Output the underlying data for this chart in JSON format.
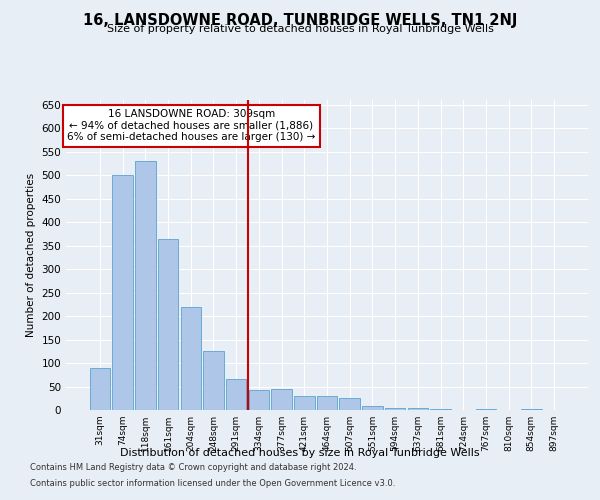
{
  "title": "16, LANSDOWNE ROAD, TUNBRIDGE WELLS, TN1 2NJ",
  "subtitle": "Size of property relative to detached houses in Royal Tunbridge Wells",
  "xlabel": "Distribution of detached houses by size in Royal Tunbridge Wells",
  "ylabel": "Number of detached properties",
  "categories": [
    "31sqm",
    "74sqm",
    "118sqm",
    "161sqm",
    "204sqm",
    "248sqm",
    "291sqm",
    "334sqm",
    "377sqm",
    "421sqm",
    "464sqm",
    "507sqm",
    "551sqm",
    "594sqm",
    "637sqm",
    "681sqm",
    "724sqm",
    "767sqm",
    "810sqm",
    "854sqm",
    "897sqm"
  ],
  "values": [
    90,
    500,
    530,
    365,
    220,
    125,
    65,
    42,
    45,
    30,
    30,
    25,
    8,
    5,
    5,
    2,
    0,
    2,
    0,
    2,
    0
  ],
  "bar_color": "#aec6e8",
  "bar_edge_color": "#6aaad4",
  "property_line_x": 6.5,
  "annotation_text": "16 LANSDOWNE ROAD: 309sqm\n← 94% of detached houses are smaller (1,886)\n6% of semi-detached houses are larger (130) →",
  "annotation_box_color": "#ffffff",
  "annotation_box_edge": "#cc0000",
  "line_color": "#cc0000",
  "ylim": [
    0,
    660
  ],
  "yticks": [
    0,
    50,
    100,
    150,
    200,
    250,
    300,
    350,
    400,
    450,
    500,
    550,
    600,
    650
  ],
  "background_color": "#e8eef5",
  "footer_line1": "Contains HM Land Registry data © Crown copyright and database right 2024.",
  "footer_line2": "Contains public sector information licensed under the Open Government Licence v3.0."
}
